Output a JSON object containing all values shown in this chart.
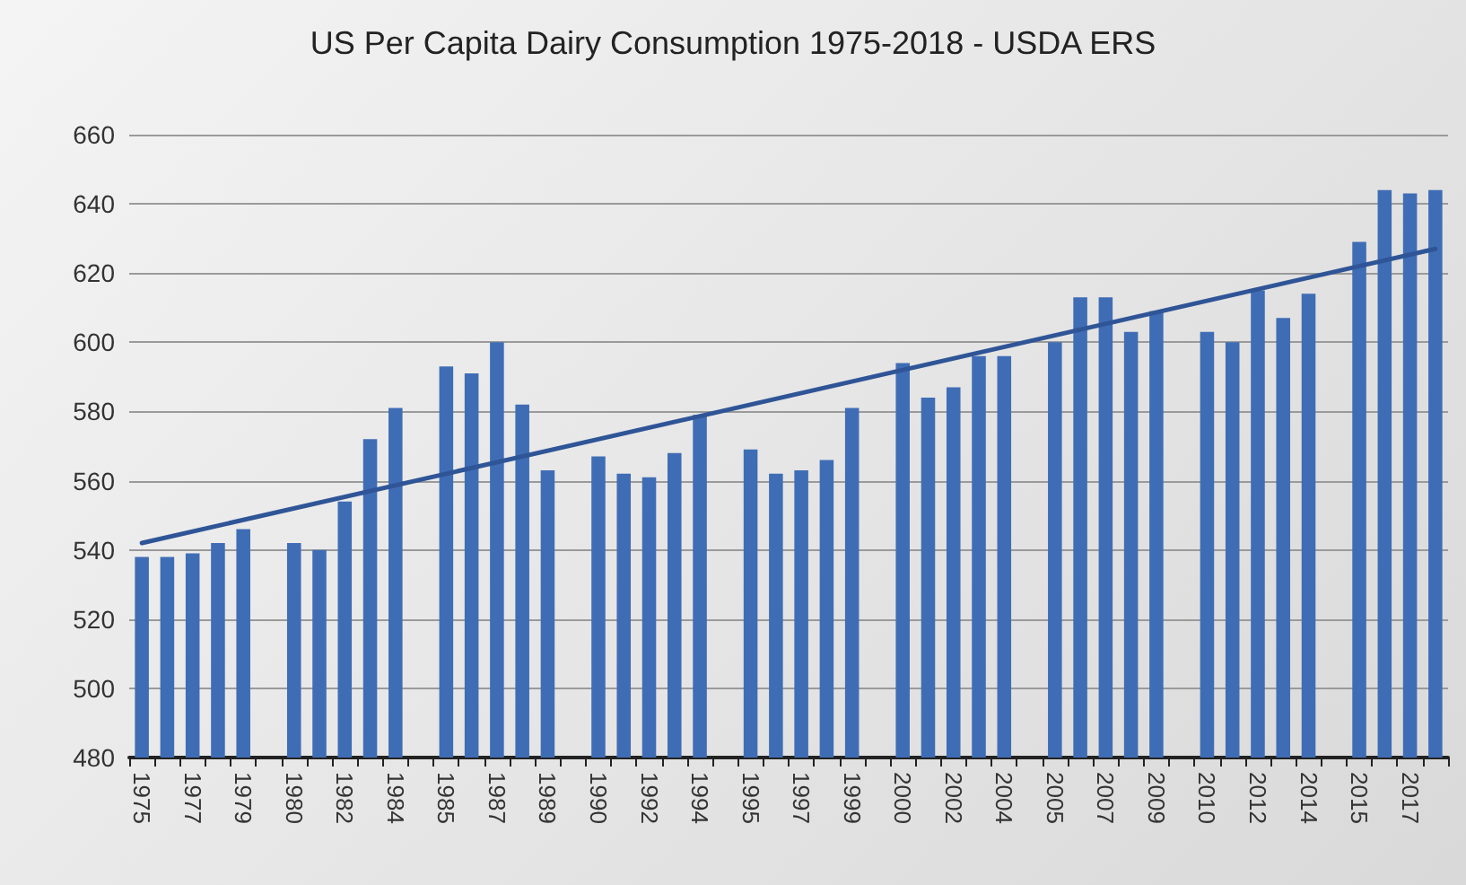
{
  "chart_data": {
    "type": "bar",
    "title": "US Per Capita Dairy Consumption 1975-2018 - USDA ERS",
    "categories": [
      "1975",
      null,
      "1977",
      null,
      "1979",
      null,
      "1980",
      null,
      "1982",
      null,
      "1984",
      null,
      "1985",
      null,
      "1987",
      null,
      "1989",
      null,
      "1990",
      null,
      "1992",
      null,
      "1994",
      null,
      "1995",
      null,
      "1997",
      null,
      "1999",
      null,
      "2000",
      null,
      "2002",
      null,
      "2004",
      null,
      "2005",
      null,
      "2007",
      null,
      "2009",
      null,
      "2010",
      null,
      "2012",
      null,
      "2014",
      null,
      "2015",
      null,
      "2017",
      null
    ],
    "series": [
      {
        "color": "#3f6db5",
        "values": [
          538,
          538,
          539,
          542,
          546,
          null,
          542,
          540,
          554,
          572,
          581,
          null,
          593,
          591,
          600,
          582,
          563,
          null,
          567,
          562,
          561,
          568,
          579,
          null,
          569,
          562,
          563,
          566,
          581,
          null,
          594,
          584,
          587,
          596,
          596,
          null,
          600,
          613,
          613,
          603,
          609,
          null,
          603,
          600,
          615,
          607,
          614,
          null,
          629,
          644,
          643,
          644
        ]
      },
      {
        "type": "line",
        "color": "#2f5597",
        "values": [
          542,
          null,
          null,
          null,
          null,
          null,
          null,
          null,
          null,
          null,
          null,
          null,
          null,
          null,
          null,
          null,
          null,
          null,
          null,
          null,
          null,
          null,
          null,
          null,
          null,
          null,
          null,
          null,
          null,
          null,
          null,
          null,
          null,
          null,
          null,
          null,
          null,
          null,
          null,
          null,
          null,
          null,
          null,
          null,
          null,
          null,
          null,
          null,
          null,
          null,
          null,
          627
        ]
      }
    ],
    "ylim": [
      480,
      660
    ],
    "yticks": [
      480,
      500,
      520,
      540,
      560,
      580,
      600,
      620,
      640,
      660
    ],
    "grid": "y"
  }
}
